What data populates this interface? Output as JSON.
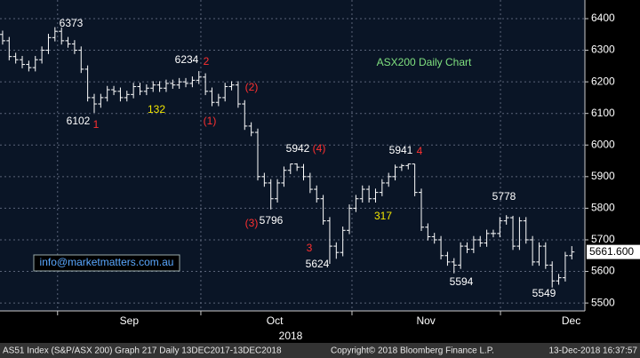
{
  "chart_data": {
    "type": "ohlc",
    "title": "ASX200 Daily Chart",
    "color": "#ffffff",
    "open": [
      6350,
      6330,
      6280,
      6270,
      6255,
      6245,
      6270,
      6300,
      6340,
      6360,
      6330,
      6320,
      6300,
      6240,
      6150,
      6130,
      6150,
      6175,
      6170,
      6150,
      6160,
      6185,
      6170,
      6180,
      6190,
      6180,
      6195,
      6190,
      6200,
      6195,
      6205,
      6215,
      6170,
      6135,
      6150,
      6185,
      6190,
      6130,
      6060,
      6040,
      5900,
      5880,
      5830,
      5880,
      5920,
      5940,
      5930,
      5900,
      5860,
      5830,
      5760,
      5680,
      5660,
      5730,
      5800,
      5830,
      5860,
      5830,
      5850,
      5880,
      5900,
      5930,
      5935,
      5940,
      5850,
      5740,
      5710,
      5700,
      5650,
      5630,
      5620,
      5680,
      5670,
      5700,
      5690,
      5720,
      5720,
      5760,
      5770,
      5680,
      5760,
      5700,
      5630,
      5680,
      5620,
      5570,
      5580,
      5650
    ],
    "high": [
      6362,
      6342,
      6292,
      6282,
      6267,
      6282,
      6312,
      6352,
      6373,
      6372,
      6342,
      6332,
      6312,
      6252,
      6162,
      6162,
      6187,
      6187,
      6182,
      6172,
      6197,
      6197,
      6192,
      6202,
      6202,
      6207,
      6207,
      6212,
      6212,
      6217,
      6234,
      6227,
      6182,
      6162,
      6197,
      6202,
      6202,
      6142,
      6072,
      6052,
      5912,
      5892,
      5892,
      5932,
      5941,
      5942,
      5940,
      5912,
      5872,
      5842,
      5772,
      5692,
      5742,
      5812,
      5842,
      5872,
      5872,
      5862,
      5892,
      5912,
      5938,
      5940,
      5941,
      5940,
      5862,
      5752,
      5722,
      5712,
      5662,
      5642,
      5692,
      5692,
      5712,
      5712,
      5732,
      5732,
      5772,
      5778,
      5776,
      5772,
      5772,
      5712,
      5692,
      5692,
      5632,
      5592,
      5662,
      5680
    ],
    "low": [
      6318,
      6268,
      6258,
      6243,
      6233,
      6233,
      6258,
      6288,
      6328,
      6318,
      6308,
      6288,
      6228,
      6138,
      6102,
      6118,
      6138,
      6158,
      6138,
      6138,
      6148,
      6158,
      6158,
      6168,
      6168,
      6168,
      6178,
      6178,
      6183,
      6183,
      6193,
      6158,
      6123,
      6123,
      6138,
      6173,
      6118,
      6048,
      6028,
      5888,
      5868,
      5796,
      5818,
      5868,
      5908,
      5918,
      5888,
      5848,
      5818,
      5748,
      5624,
      5640,
      5648,
      5718,
      5788,
      5818,
      5818,
      5818,
      5838,
      5868,
      5888,
      5918,
      5923,
      5838,
      5728,
      5698,
      5688,
      5638,
      5618,
      5594,
      5608,
      5658,
      5658,
      5678,
      5678,
      5708,
      5708,
      5748,
      5668,
      5668,
      5688,
      5618,
      5618,
      5608,
      5549,
      5558,
      5568,
      5638
    ],
    "close": [
      6330,
      6280,
      6270,
      6255,
      6245,
      6270,
      6300,
      6340,
      6360,
      6330,
      6320,
      6300,
      6240,
      6150,
      6130,
      6150,
      6175,
      6170,
      6150,
      6160,
      6185,
      6170,
      6180,
      6190,
      6180,
      6195,
      6190,
      6200,
      6195,
      6205,
      6215,
      6170,
      6135,
      6150,
      6185,
      6190,
      6130,
      6060,
      6040,
      5900,
      5880,
      5830,
      5880,
      5920,
      5940,
      5930,
      5900,
      5860,
      5830,
      5760,
      5680,
      5660,
      5730,
      5800,
      5830,
      5860,
      5830,
      5850,
      5880,
      5900,
      5930,
      5935,
      5940,
      5850,
      5740,
      5710,
      5700,
      5650,
      5630,
      5620,
      5680,
      5670,
      5700,
      5690,
      5720,
      5720,
      5760,
      5770,
      5680,
      5760,
      5700,
      5630,
      5680,
      5620,
      5570,
      5580,
      5650,
      5661.6
    ],
    "last_label": "5661.600",
    "ylim": [
      5475,
      6459
    ],
    "yticks": [
      5500,
      5600,
      5700,
      5800,
      5900,
      6000,
      6100,
      6200,
      6300,
      6400
    ],
    "xlim": [
      -0.4,
      89
    ],
    "xticks": [
      {
        "value": 19.35,
        "label": "Sep"
      },
      {
        "value": 41.6,
        "label": "Oct"
      },
      {
        "value": 64.7,
        "label": "Nov"
      },
      {
        "value": 86.9,
        "label": "Dec"
      }
    ],
    "xgrid": [
      8.4,
      30.3,
      53.4,
      76.1
    ],
    "year_label": "2018",
    "grid": true,
    "annotations": [
      "6373",
      "6102",
      "1",
      "132",
      "6234",
      "2",
      "(1)",
      "(2)",
      "5942",
      "(4)",
      "(3)",
      "5796",
      "3",
      "5624",
      "5941",
      "4",
      "317",
      "5594",
      "5778",
      "5549"
    ],
    "contact": "info@marketmatters.com.au"
  },
  "footer": {
    "left": "AS51 Index (S&P/ASX 200) Graph 217  Daily 13DEC2017-13DEC2018",
    "copyright": "Copyright© 2018 Bloomberg Finance L.P.",
    "timestamp": "13-Dec-2018 16:37:57"
  }
}
